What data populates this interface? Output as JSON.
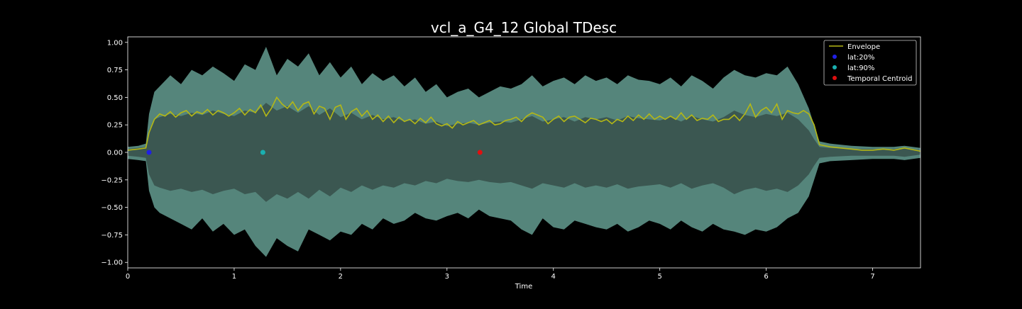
{
  "chart_data": {
    "type": "line",
    "title": "vcl_a_G4_12 Global TDesc",
    "xlabel": "Time",
    "ylabel": "",
    "xlim": [
      0,
      7.45
    ],
    "ylim": [
      -1.05,
      1.05
    ],
    "x_ticks": [
      0,
      1,
      2,
      3,
      4,
      5,
      6,
      7
    ],
    "y_ticks": [
      -1.0,
      -0.75,
      -0.5,
      -0.25,
      0.0,
      0.25,
      0.5,
      0.75,
      1.0
    ],
    "x_tick_labels": [
      "0",
      "1",
      "2",
      "3",
      "4",
      "5",
      "6",
      "7"
    ],
    "y_tick_labels": [
      "−1.00",
      "−0.75",
      "−0.50",
      "−0.25",
      "0.00",
      "0.25",
      "0.50",
      "0.75",
      "1.00"
    ],
    "grid": false,
    "legend_position": "top-right",
    "colors": {
      "background": "#000000",
      "axes": "#ffffff",
      "text": "#ffffff",
      "waveform_outer": "#5e9488",
      "waveform_inner": "#3b5751",
      "envelope": "#b5b815",
      "lat20": "#1f1fe6",
      "lat90": "#1ab0b0",
      "centroid": "#e01010"
    },
    "waveform": {
      "name": "",
      "x": [
        0,
        0.1,
        0.17,
        0.2,
        0.25,
        0.3,
        0.4,
        0.5,
        0.6,
        0.7,
        0.8,
        0.9,
        1.0,
        1.1,
        1.2,
        1.3,
        1.4,
        1.5,
        1.6,
        1.7,
        1.8,
        1.9,
        2.0,
        2.1,
        2.2,
        2.3,
        2.4,
        2.5,
        2.6,
        2.7,
        2.8,
        2.9,
        3.0,
        3.1,
        3.2,
        3.3,
        3.4,
        3.5,
        3.6,
        3.7,
        3.8,
        3.9,
        4.0,
        4.1,
        4.2,
        4.3,
        4.4,
        4.5,
        4.6,
        4.7,
        4.8,
        4.9,
        5.0,
        5.1,
        5.2,
        5.3,
        5.4,
        5.5,
        5.6,
        5.7,
        5.8,
        5.9,
        6.0,
        6.1,
        6.2,
        6.3,
        6.4,
        6.45,
        6.5,
        6.6,
        6.8,
        7.0,
        7.2,
        7.3,
        7.45
      ],
      "upper": [
        0.05,
        0.06,
        0.08,
        0.35,
        0.55,
        0.6,
        0.7,
        0.62,
        0.75,
        0.7,
        0.78,
        0.72,
        0.65,
        0.8,
        0.75,
        0.96,
        0.7,
        0.85,
        0.78,
        0.9,
        0.7,
        0.82,
        0.68,
        0.78,
        0.62,
        0.72,
        0.65,
        0.7,
        0.6,
        0.68,
        0.55,
        0.62,
        0.5,
        0.55,
        0.58,
        0.5,
        0.55,
        0.6,
        0.58,
        0.62,
        0.7,
        0.6,
        0.65,
        0.68,
        0.62,
        0.7,
        0.65,
        0.68,
        0.62,
        0.7,
        0.66,
        0.65,
        0.62,
        0.68,
        0.6,
        0.7,
        0.65,
        0.58,
        0.68,
        0.75,
        0.7,
        0.68,
        0.72,
        0.7,
        0.78,
        0.62,
        0.4,
        0.25,
        0.1,
        0.08,
        0.06,
        0.05,
        0.05,
        0.06,
        0.04
      ],
      "lower": [
        -0.06,
        -0.07,
        -0.08,
        -0.35,
        -0.5,
        -0.55,
        -0.6,
        -0.65,
        -0.7,
        -0.6,
        -0.72,
        -0.65,
        -0.75,
        -0.7,
        -0.85,
        -0.95,
        -0.78,
        -0.85,
        -0.9,
        -0.7,
        -0.75,
        -0.8,
        -0.72,
        -0.75,
        -0.65,
        -0.7,
        -0.6,
        -0.65,
        -0.62,
        -0.55,
        -0.6,
        -0.62,
        -0.58,
        -0.55,
        -0.6,
        -0.52,
        -0.58,
        -0.6,
        -0.62,
        -0.7,
        -0.75,
        -0.6,
        -0.68,
        -0.7,
        -0.62,
        -0.65,
        -0.68,
        -0.7,
        -0.65,
        -0.72,
        -0.68,
        -0.62,
        -0.65,
        -0.7,
        -0.62,
        -0.68,
        -0.72,
        -0.65,
        -0.7,
        -0.72,
        -0.75,
        -0.7,
        -0.72,
        -0.68,
        -0.6,
        -0.55,
        -0.4,
        -0.25,
        -0.1,
        -0.08,
        -0.07,
        -0.06,
        -0.06,
        -0.07,
        -0.05
      ],
      "inner_upper": [
        0.03,
        0.04,
        0.05,
        0.2,
        0.3,
        0.32,
        0.35,
        0.33,
        0.36,
        0.34,
        0.38,
        0.35,
        0.33,
        0.38,
        0.36,
        0.45,
        0.38,
        0.42,
        0.36,
        0.42,
        0.34,
        0.4,
        0.32,
        0.36,
        0.3,
        0.34,
        0.3,
        0.32,
        0.28,
        0.3,
        0.26,
        0.28,
        0.24,
        0.26,
        0.27,
        0.25,
        0.27,
        0.28,
        0.27,
        0.3,
        0.33,
        0.28,
        0.3,
        0.32,
        0.28,
        0.32,
        0.3,
        0.32,
        0.29,
        0.33,
        0.31,
        0.3,
        0.29,
        0.32,
        0.28,
        0.33,
        0.3,
        0.28,
        0.32,
        0.38,
        0.34,
        0.32,
        0.35,
        0.33,
        0.36,
        0.3,
        0.2,
        0.12,
        0.05,
        0.04,
        0.03,
        0.03,
        0.03,
        0.04,
        0.02
      ],
      "inner_lower": [
        -0.03,
        -0.04,
        -0.05,
        -0.2,
        -0.3,
        -0.32,
        -0.35,
        -0.33,
        -0.36,
        -0.34,
        -0.38,
        -0.35,
        -0.33,
        -0.38,
        -0.36,
        -0.45,
        -0.38,
        -0.42,
        -0.36,
        -0.42,
        -0.34,
        -0.4,
        -0.32,
        -0.36,
        -0.3,
        -0.34,
        -0.3,
        -0.32,
        -0.28,
        -0.3,
        -0.26,
        -0.28,
        -0.24,
        -0.26,
        -0.27,
        -0.25,
        -0.27,
        -0.28,
        -0.27,
        -0.3,
        -0.33,
        -0.28,
        -0.3,
        -0.32,
        -0.28,
        -0.32,
        -0.3,
        -0.32,
        -0.29,
        -0.33,
        -0.31,
        -0.3,
        -0.29,
        -0.32,
        -0.28,
        -0.33,
        -0.3,
        -0.28,
        -0.32,
        -0.38,
        -0.34,
        -0.32,
        -0.35,
        -0.33,
        -0.36,
        -0.3,
        -0.2,
        -0.12,
        -0.05,
        -0.04,
        -0.03,
        -0.03,
        -0.03,
        -0.04,
        -0.02
      ]
    },
    "series": [
      {
        "name": "Envelope",
        "x": [
          0,
          0.1,
          0.17,
          0.2,
          0.25,
          0.3,
          0.35,
          0.4,
          0.45,
          0.5,
          0.55,
          0.6,
          0.65,
          0.7,
          0.75,
          0.8,
          0.85,
          0.9,
          0.95,
          1.0,
          1.05,
          1.1,
          1.15,
          1.2,
          1.25,
          1.3,
          1.35,
          1.4,
          1.45,
          1.5,
          1.55,
          1.6,
          1.65,
          1.7,
          1.75,
          1.8,
          1.85,
          1.9,
          1.95,
          2.0,
          2.05,
          2.1,
          2.15,
          2.2,
          2.25,
          2.3,
          2.35,
          2.4,
          2.45,
          2.5,
          2.55,
          2.6,
          2.65,
          2.7,
          2.75,
          2.8,
          2.85,
          2.9,
          2.95,
          3.0,
          3.05,
          3.1,
          3.15,
          3.2,
          3.25,
          3.3,
          3.35,
          3.4,
          3.45,
          3.5,
          3.55,
          3.6,
          3.65,
          3.7,
          3.75,
          3.8,
          3.85,
          3.9,
          3.95,
          4.0,
          4.05,
          4.1,
          4.15,
          4.2,
          4.25,
          4.3,
          4.35,
          4.4,
          4.45,
          4.5,
          4.55,
          4.6,
          4.65,
          4.7,
          4.75,
          4.8,
          4.85,
          4.9,
          4.95,
          5.0,
          5.05,
          5.1,
          5.15,
          5.2,
          5.25,
          5.3,
          5.35,
          5.4,
          5.45,
          5.5,
          5.55,
          5.6,
          5.65,
          5.7,
          5.75,
          5.8,
          5.85,
          5.9,
          5.95,
          6.0,
          6.05,
          6.1,
          6.15,
          6.2,
          6.25,
          6.3,
          6.35,
          6.4,
          6.45,
          6.5,
          6.6,
          6.7,
          6.8,
          6.9,
          7.0,
          7.1,
          7.2,
          7.3,
          7.4,
          7.45
        ],
        "values": [
          0.02,
          0.03,
          0.04,
          0.18,
          0.3,
          0.35,
          0.33,
          0.37,
          0.32,
          0.36,
          0.38,
          0.33,
          0.37,
          0.35,
          0.39,
          0.34,
          0.38,
          0.36,
          0.33,
          0.36,
          0.4,
          0.34,
          0.39,
          0.36,
          0.43,
          0.33,
          0.4,
          0.5,
          0.44,
          0.4,
          0.46,
          0.38,
          0.44,
          0.46,
          0.35,
          0.42,
          0.4,
          0.3,
          0.41,
          0.43,
          0.3,
          0.37,
          0.4,
          0.33,
          0.38,
          0.3,
          0.34,
          0.28,
          0.33,
          0.27,
          0.32,
          0.28,
          0.3,
          0.26,
          0.31,
          0.27,
          0.32,
          0.26,
          0.24,
          0.26,
          0.22,
          0.28,
          0.25,
          0.27,
          0.29,
          0.25,
          0.27,
          0.29,
          0.25,
          0.26,
          0.29,
          0.3,
          0.32,
          0.28,
          0.33,
          0.36,
          0.34,
          0.32,
          0.26,
          0.3,
          0.33,
          0.28,
          0.32,
          0.33,
          0.3,
          0.27,
          0.31,
          0.3,
          0.28,
          0.3,
          0.26,
          0.3,
          0.28,
          0.33,
          0.29,
          0.34,
          0.3,
          0.35,
          0.3,
          0.33,
          0.3,
          0.33,
          0.3,
          0.36,
          0.3,
          0.34,
          0.29,
          0.31,
          0.3,
          0.34,
          0.28,
          0.3,
          0.3,
          0.34,
          0.29,
          0.35,
          0.44,
          0.32,
          0.38,
          0.41,
          0.36,
          0.44,
          0.3,
          0.38,
          0.36,
          0.35,
          0.38,
          0.35,
          0.25,
          0.07,
          0.05,
          0.04,
          0.03,
          0.02,
          0.02,
          0.03,
          0.02,
          0.04,
          0.02,
          0.01
        ]
      }
    ],
    "markers": [
      {
        "name": "lat:20%",
        "x": 0.2,
        "y": 0.0
      },
      {
        "name": "lat:90%",
        "x": 1.27,
        "y": 0.0
      },
      {
        "name": "Temporal Centroid",
        "x": 3.31,
        "y": 0.0
      }
    ]
  }
}
